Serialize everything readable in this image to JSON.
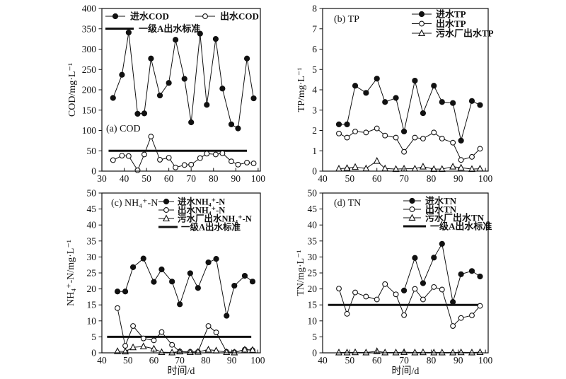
{
  "figure": {
    "background": "#ffffff",
    "ink_color": "#111111",
    "time_axis_label": "时间/d"
  },
  "chart_data": [
    {
      "type": "line",
      "panel_label": "(a) COD",
      "ylabel": "COD/mg·L⁻¹",
      "xlabel": "",
      "xlim": [
        30,
        101
      ],
      "ylim": [
        0,
        400
      ],
      "xticks": [
        30,
        40,
        50,
        60,
        70,
        80,
        90,
        100
      ],
      "yticks": [
        0,
        50,
        100,
        150,
        200,
        250,
        300,
        350,
        400
      ],
      "grid": false,
      "legend_position": "top-center-inside",
      "x": [
        35,
        39,
        42,
        46,
        49,
        52,
        56,
        60,
        63,
        67,
        70,
        74,
        77,
        81,
        84,
        88,
        91,
        95,
        98
      ],
      "series": [
        {
          "key": "influent-cod",
          "name": "进水COD",
          "marker": "filled-circle",
          "values": [
            180,
            237,
            341,
            141,
            142,
            277,
            186,
            217,
            323,
            227,
            120,
            338,
            163,
            325,
            203,
            115,
            105,
            277,
            179
          ]
        },
        {
          "key": "effluent-cod",
          "name": "出水COD",
          "marker": "open-circle",
          "values": [
            27,
            38,
            37,
            2,
            41,
            85,
            28,
            33,
            9,
            15,
            16,
            32,
            43,
            41,
            44,
            24,
            16,
            21,
            19
          ]
        }
      ],
      "standard_line": {
        "label": "一级A出水标准",
        "y": 50,
        "x_start": 33,
        "x_end": 95
      }
    },
    {
      "type": "line",
      "panel_label": "(b) TP",
      "ylabel": "TP/mg·L⁻¹",
      "xlabel": "",
      "xlim": [
        40,
        101
      ],
      "ylim": [
        0,
        8
      ],
      "xticks": [
        40,
        50,
        60,
        70,
        80,
        90,
        100
      ],
      "yticks": [
        0,
        1,
        2,
        3,
        4,
        5,
        6,
        7,
        8
      ],
      "grid": false,
      "legend_position": "top-right-inside",
      "x": [
        46,
        49,
        52,
        56,
        60,
        63,
        67,
        70,
        74,
        77,
        81,
        84,
        88,
        91,
        95,
        98
      ],
      "series": [
        {
          "key": "influent-tp",
          "name": "进水TP",
          "marker": "filled-circle",
          "values": [
            2.3,
            2.3,
            4.2,
            3.85,
            4.55,
            3.4,
            3.6,
            1.95,
            4.45,
            2.85,
            4.2,
            3.4,
            3.35,
            1.5,
            3.45,
            3.25
          ]
        },
        {
          "key": "effluent-tp",
          "name": "出水TP",
          "marker": "open-circle",
          "values": [
            1.85,
            1.65,
            1.95,
            1.9,
            2.1,
            1.75,
            1.65,
            0.95,
            1.65,
            1.6,
            1.9,
            1.6,
            1.4,
            0.55,
            0.7,
            1.1
          ]
        },
        {
          "key": "wwtp-effluent-tp",
          "name": "污水厂出水TP",
          "marker": "open-triangle",
          "values": [
            0.12,
            0.15,
            0.2,
            0.13,
            0.5,
            0.13,
            0.1,
            0.12,
            0.12,
            0.22,
            0.1,
            0.1,
            0.22,
            0.17,
            0.1,
            0.12
          ]
        }
      ],
      "standard_line": null
    },
    {
      "type": "line",
      "panel_label": "(c) NH₄⁺-N",
      "ylabel": "NH₄⁺-N/mg·L⁻¹",
      "xlabel": "时间/d",
      "xlim": [
        40,
        101
      ],
      "ylim": [
        0,
        50
      ],
      "xticks": [
        40,
        50,
        60,
        70,
        80,
        90,
        100
      ],
      "yticks": [
        0,
        5,
        10,
        15,
        20,
        25,
        30,
        35,
        40,
        45,
        50
      ],
      "grid": false,
      "legend_position": "top-center-inside",
      "x": [
        46,
        49,
        52,
        56,
        60,
        63,
        67,
        70,
        74,
        77,
        81,
        84,
        88,
        91,
        95,
        98
      ],
      "series": [
        {
          "key": "influent-nh4n",
          "name": "进水NH₄⁺-N",
          "marker": "filled-circle",
          "values": [
            19.2,
            19.2,
            26.8,
            29.5,
            22.2,
            26.1,
            22.3,
            15.2,
            24.9,
            20.3,
            28.3,
            29.4,
            11.6,
            21.0,
            24.1,
            22.3
          ]
        },
        {
          "key": "effluent-nh4n",
          "name": "出水NH₄⁺-N",
          "marker": "open-circle",
          "values": [
            14.0,
            2.2,
            8.4,
            4.5,
            3.9,
            6.5,
            2.5,
            0.4,
            0.3,
            0.3,
            8.4,
            6.4,
            0.3,
            0.2,
            1.0,
            0.8
          ]
        },
        {
          "key": "wwtp-effluent-nh4n",
          "name": "污水厂出水NH₄⁺-N",
          "marker": "open-triangle",
          "values": [
            0.5,
            0.4,
            1.7,
            2.0,
            1.3,
            0.2,
            0.1,
            0.4,
            0.2,
            0.3,
            1.0,
            0.7,
            0.2,
            0.1,
            1.0,
            0.9
          ]
        }
      ],
      "standard_line": {
        "label": "一级A出水标准",
        "y": 5,
        "x_start": 42,
        "x_end": 97.5
      }
    },
    {
      "type": "line",
      "panel_label": "(d) TN",
      "ylabel": "TN/mg·L⁻¹",
      "xlabel": "时间/d",
      "xlim": [
        40,
        101
      ],
      "ylim": [
        0,
        50
      ],
      "xticks": [
        40,
        50,
        60,
        70,
        80,
        90,
        100
      ],
      "yticks": [
        0,
        5,
        10,
        15,
        20,
        25,
        30,
        35,
        40,
        45,
        50
      ],
      "grid": false,
      "legend_position": "top-center-inside",
      "x": [
        46,
        49,
        52,
        56,
        60,
        63,
        67,
        70,
        74,
        77,
        81,
        84,
        88,
        91,
        95,
        98
      ],
      "series": [
        {
          "key": "influent-tn",
          "name": "进水TN",
          "marker": "filled-circle",
          "x": [
            70,
            74,
            77,
            81,
            84,
            88,
            91,
            95,
            98
          ],
          "values": [
            19.5,
            29.7,
            21.8,
            29.8,
            34.1,
            15.9,
            24.6,
            25.6,
            23.9
          ]
        },
        {
          "key": "effluent-tn",
          "name": "出水TN",
          "marker": "open-circle",
          "values": [
            20.1,
            12.2,
            18.9,
            17.6,
            16.7,
            21.5,
            18.3,
            11.8,
            20.0,
            16.7,
            20.6,
            19.8,
            8.4,
            10.9,
            11.7,
            14.7
          ]
        },
        {
          "key": "wwtp-effluent-tn",
          "name": "污水厂出水TN",
          "marker": "open-triangle",
          "values": [
            0.1,
            0.1,
            0.15,
            0.1,
            0.5,
            0.1,
            0.1,
            0.2,
            0.1,
            0.15,
            0.1,
            0.1,
            0.1,
            0.15,
            0.1,
            0.2
          ]
        }
      ],
      "standard_line": {
        "label": "一级A出水标准",
        "y": 15,
        "x_start": 42,
        "x_end": 98.5
      }
    }
  ]
}
